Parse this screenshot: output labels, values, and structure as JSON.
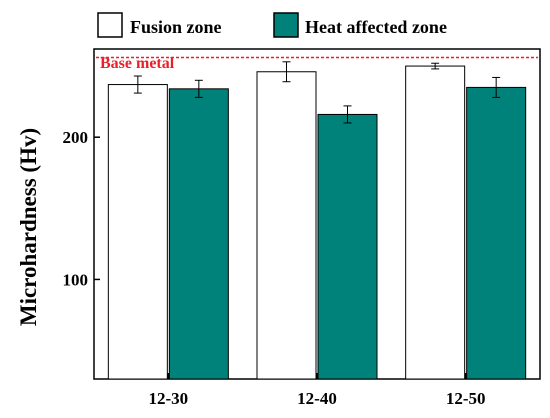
{
  "chart_data": {
    "type": "bar",
    "title": "",
    "xlabel": "",
    "ylabel": "Microhardness (Hv)",
    "categories": [
      "12-30",
      "12-40",
      "12-50"
    ],
    "ylim": [
      30,
      262
    ],
    "y_ticks": [
      100,
      200
    ],
    "grid": false,
    "legend_position": "top",
    "series": [
      {
        "name": "Fusion zone",
        "color": "#ffffff",
        "values": [
          237,
          246,
          250
        ],
        "errors": [
          6,
          7,
          2
        ]
      },
      {
        "name": "Heat affected zone",
        "color": "#00827a",
        "values": [
          234,
          216,
          235
        ],
        "errors": [
          6,
          6,
          7
        ]
      }
    ],
    "reference_line": {
      "label": "Base metal",
      "value": 256,
      "color": "#e8202a",
      "style": "dashed"
    }
  }
}
